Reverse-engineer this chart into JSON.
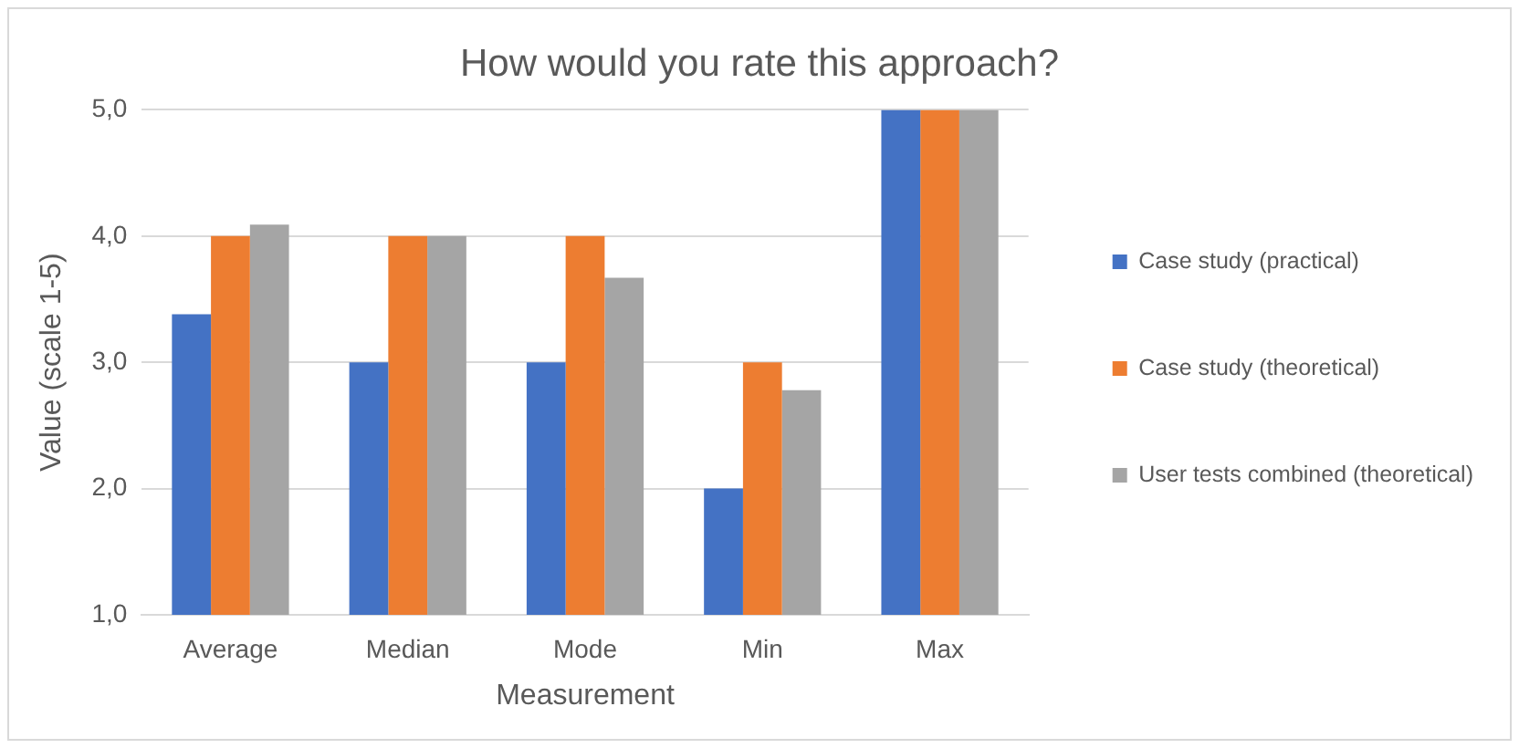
{
  "chart_data": {
    "type": "bar",
    "title": "How would you rate this approach?",
    "xlabel": "Measurement",
    "ylabel": "Value (scale 1-5)",
    "categories": [
      "Average",
      "Median",
      "Mode",
      "Min",
      "Max"
    ],
    "series": [
      {
        "name": "Case study (practical)",
        "color": "#4472c4",
        "values": [
          3.38,
          3,
          3,
          2,
          5
        ]
      },
      {
        "name": "Case study (theoretical)",
        "color": "#ed7d31",
        "values": [
          4,
          4,
          4,
          3,
          5
        ]
      },
      {
        "name": "User tests combined (theoretical)",
        "color": "#a5a5a5",
        "values": [
          4.09,
          4,
          3.67,
          2.78,
          5
        ]
      }
    ],
    "ylim": [
      1,
      5
    ],
    "yticks": [
      {
        "value": 1,
        "label": "1,0"
      },
      {
        "value": 2,
        "label": "2,0"
      },
      {
        "value": 3,
        "label": "3,0"
      },
      {
        "value": 4,
        "label": "4,0"
      },
      {
        "value": 5,
        "label": "5,0"
      }
    ],
    "grid": "y",
    "legend": "right"
  }
}
